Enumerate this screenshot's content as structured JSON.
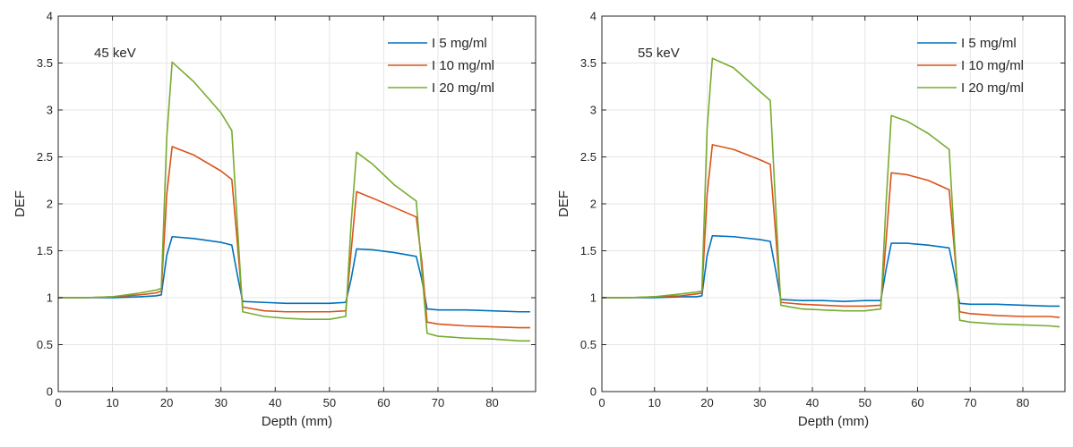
{
  "chart_data": [
    {
      "type": "line",
      "annotation": "45 keV",
      "xlabel": "Depth (mm)",
      "ylabel": "DEF",
      "xlim": [
        0,
        88
      ],
      "ylim": [
        0,
        4
      ],
      "xticks": [
        0,
        10,
        20,
        30,
        40,
        50,
        60,
        70,
        80
      ],
      "yticks": [
        0,
        0.5,
        1,
        1.5,
        2,
        2.5,
        3,
        3.5,
        4
      ],
      "xtick_labels": [
        "0",
        "10",
        "20",
        "30",
        "40",
        "50",
        "60",
        "70",
        "80"
      ],
      "ytick_labels": [
        "0",
        "0.5",
        "1",
        "1.5",
        "2",
        "2.5",
        "3",
        "3.5",
        "4"
      ],
      "grid": true,
      "legend_position": "top-right",
      "series": [
        {
          "name": "I 5 mg/ml",
          "color": "#0072BD",
          "x": [
            0,
            5,
            10,
            15,
            18,
            19,
            20,
            21,
            25,
            30,
            32,
            33,
            34,
            38,
            42,
            46,
            50,
            53,
            54,
            55,
            58,
            62,
            66,
            67,
            68,
            70,
            75,
            80,
            85,
            87
          ],
          "y": [
            1.0,
            1.0,
            1.0,
            1.01,
            1.02,
            1.03,
            1.45,
            1.65,
            1.63,
            1.59,
            1.56,
            1.25,
            0.96,
            0.95,
            0.94,
            0.94,
            0.94,
            0.95,
            1.2,
            1.52,
            1.51,
            1.48,
            1.44,
            1.2,
            0.88,
            0.87,
            0.87,
            0.86,
            0.85,
            0.85
          ]
        },
        {
          "name": "I 10 mg/ml",
          "color": "#D95319",
          "x": [
            0,
            5,
            10,
            15,
            18,
            19,
            20,
            21,
            25,
            30,
            32,
            33,
            34,
            38,
            42,
            46,
            50,
            53,
            54,
            55,
            58,
            62,
            66,
            67,
            68,
            70,
            75,
            80,
            85,
            87
          ],
          "y": [
            1.0,
            1.0,
            1.01,
            1.03,
            1.05,
            1.07,
            2.1,
            2.61,
            2.52,
            2.35,
            2.26,
            1.6,
            0.9,
            0.86,
            0.85,
            0.85,
            0.85,
            0.86,
            1.5,
            2.13,
            2.06,
            1.96,
            1.86,
            1.4,
            0.74,
            0.72,
            0.7,
            0.69,
            0.68,
            0.68
          ]
        },
        {
          "name": "I 20 mg/ml",
          "color": "#77AC30",
          "x": [
            0,
            5,
            10,
            15,
            18,
            19,
            20,
            21,
            25,
            30,
            32,
            33,
            34,
            38,
            42,
            46,
            50,
            53,
            54,
            55,
            58,
            62,
            66,
            67,
            68,
            70,
            75,
            80,
            85,
            87
          ],
          "y": [
            1.0,
            1.0,
            1.01,
            1.05,
            1.08,
            1.1,
            2.7,
            3.51,
            3.3,
            2.97,
            2.78,
            1.8,
            0.85,
            0.8,
            0.78,
            0.77,
            0.77,
            0.8,
            1.8,
            2.55,
            2.42,
            2.2,
            2.03,
            1.3,
            0.62,
            0.59,
            0.57,
            0.56,
            0.54,
            0.54
          ]
        }
      ]
    },
    {
      "type": "line",
      "annotation": "55 keV",
      "xlabel": "Depth (mm)",
      "ylabel": "DEF",
      "xlim": [
        0,
        88
      ],
      "ylim": [
        0,
        4
      ],
      "xticks": [
        0,
        10,
        20,
        30,
        40,
        50,
        60,
        70,
        80
      ],
      "yticks": [
        0,
        0.5,
        1,
        1.5,
        2,
        2.5,
        3,
        3.5,
        4
      ],
      "xtick_labels": [
        "0",
        "10",
        "20",
        "30",
        "40",
        "50",
        "60",
        "70",
        "80"
      ],
      "ytick_labels": [
        "0",
        "0.5",
        "1",
        "1.5",
        "2",
        "2.5",
        "3",
        "3.5",
        "4"
      ],
      "grid": true,
      "legend_position": "top-right",
      "series": [
        {
          "name": "I 5 mg/ml",
          "color": "#0072BD",
          "x": [
            0,
            5,
            10,
            15,
            18,
            19,
            20,
            21,
            25,
            30,
            32,
            33,
            34,
            38,
            42,
            46,
            50,
            53,
            54,
            55,
            58,
            62,
            66,
            67,
            68,
            70,
            75,
            80,
            85,
            87
          ],
          "y": [
            1.0,
            1.0,
            1.0,
            1.01,
            1.01,
            1.02,
            1.45,
            1.66,
            1.65,
            1.62,
            1.6,
            1.3,
            0.98,
            0.97,
            0.97,
            0.96,
            0.97,
            0.97,
            1.3,
            1.58,
            1.58,
            1.56,
            1.53,
            1.25,
            0.94,
            0.93,
            0.93,
            0.92,
            0.91,
            0.91
          ]
        },
        {
          "name": "I 10 mg/ml",
          "color": "#D95319",
          "x": [
            0,
            5,
            10,
            15,
            18,
            19,
            20,
            21,
            25,
            30,
            32,
            33,
            34,
            38,
            42,
            46,
            50,
            53,
            54,
            55,
            58,
            62,
            66,
            67,
            68,
            70,
            75,
            80,
            85,
            87
          ],
          "y": [
            1.0,
            1.0,
            1.01,
            1.02,
            1.04,
            1.05,
            2.1,
            2.63,
            2.58,
            2.47,
            2.42,
            1.7,
            0.95,
            0.93,
            0.92,
            0.91,
            0.91,
            0.92,
            1.6,
            2.33,
            2.31,
            2.25,
            2.15,
            1.5,
            0.85,
            0.83,
            0.81,
            0.8,
            0.8,
            0.79
          ]
        },
        {
          "name": "I 20 mg/ml",
          "color": "#77AC30",
          "x": [
            0,
            5,
            10,
            15,
            18,
            19,
            20,
            21,
            25,
            30,
            32,
            33,
            34,
            38,
            42,
            46,
            50,
            53,
            54,
            55,
            58,
            62,
            66,
            67,
            68,
            70,
            75,
            80,
            85,
            87
          ],
          "y": [
            1.0,
            1.0,
            1.01,
            1.04,
            1.06,
            1.07,
            2.8,
            3.55,
            3.45,
            3.2,
            3.1,
            2.0,
            0.92,
            0.88,
            0.87,
            0.86,
            0.86,
            0.88,
            2.0,
            2.94,
            2.88,
            2.75,
            2.58,
            1.6,
            0.76,
            0.74,
            0.72,
            0.71,
            0.7,
            0.69
          ]
        }
      ]
    }
  ]
}
